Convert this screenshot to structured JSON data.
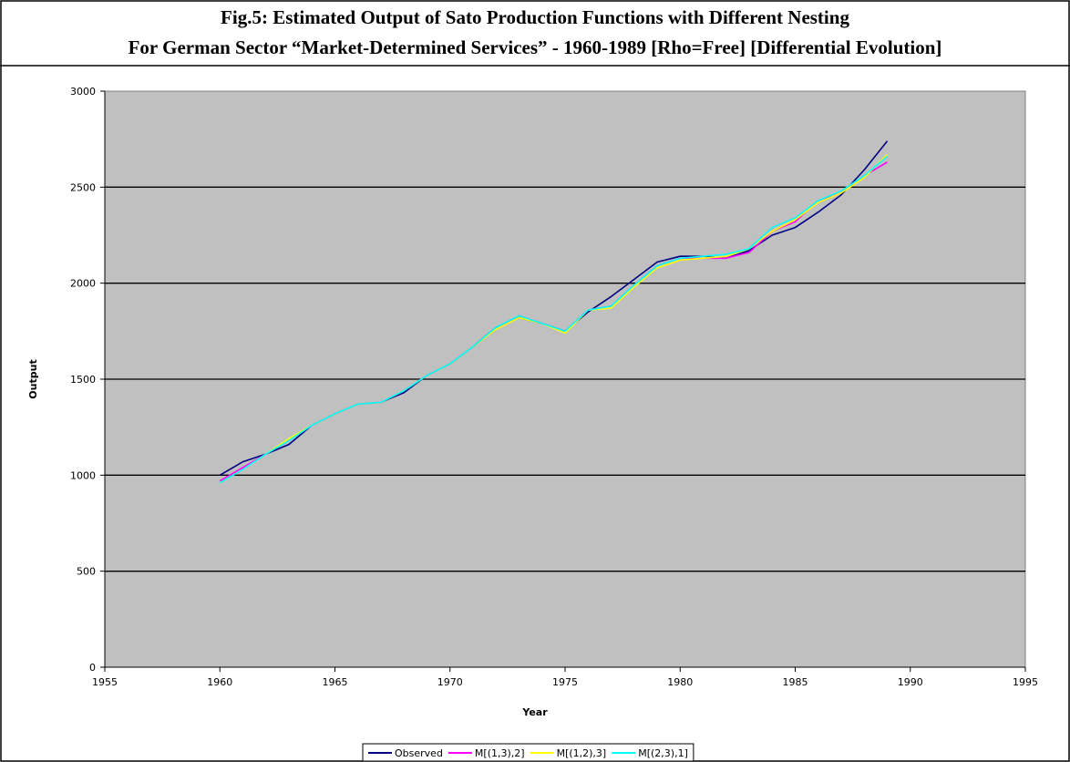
{
  "chart_data": {
    "type": "line",
    "title": "Fig.5: Estimated Output of  Sato Production Functions with Different Nesting",
    "subtitle": "For German Sector “Market-Determined Services” - 1960-1989 [Rho=Free] [Differential Evolution]",
    "x_label": "Year",
    "y_label": "Output",
    "x": [
      1960,
      1961,
      1962,
      1963,
      1964,
      1965,
      1966,
      1967,
      1968,
      1969,
      1970,
      1971,
      1972,
      1973,
      1974,
      1975,
      1976,
      1977,
      1978,
      1979,
      1980,
      1981,
      1982,
      1983,
      1984,
      1985,
      1986,
      1987,
      1988,
      1989
    ],
    "series": [
      {
        "name": "Observed",
        "color": "#000080",
        "values": [
          1000,
          1070,
          1110,
          1160,
          1260,
          1320,
          1370,
          1380,
          1430,
          1520,
          1580,
          1670,
          1770,
          1820,
          1790,
          1750,
          1850,
          1930,
          2020,
          2110,
          2140,
          2140,
          2130,
          2170,
          2250,
          2290,
          2370,
          2460,
          2590,
          2740
        ]
      },
      {
        "name": "M[(1,3),2]",
        "color": "#ff00ff",
        "values": [
          970,
          1040,
          1110,
          1180,
          1260,
          1320,
          1370,
          1380,
          1440,
          1520,
          1580,
          1670,
          1760,
          1830,
          1790,
          1750,
          1860,
          1880,
          1990,
          2090,
          2130,
          2130,
          2130,
          2160,
          2270,
          2320,
          2430,
          2470,
          2560,
          2630
        ]
      },
      {
        "name": "M[(1,2),3]",
        "color": "#ffff00",
        "values": [
          960,
          1030,
          1110,
          1190,
          1260,
          1320,
          1370,
          1380,
          1440,
          1520,
          1580,
          1670,
          1760,
          1820,
          1790,
          1740,
          1860,
          1870,
          1980,
          2080,
          2120,
          2130,
          2140,
          2180,
          2270,
          2330,
          2420,
          2470,
          2550,
          2670
        ]
      },
      {
        "name": "M[(2,3),1]",
        "color": "#00ffff",
        "values": [
          960,
          1030,
          1110,
          1180,
          1260,
          1320,
          1370,
          1380,
          1440,
          1520,
          1580,
          1670,
          1770,
          1830,
          1790,
          1750,
          1860,
          1880,
          1990,
          2090,
          2130,
          2140,
          2150,
          2180,
          2290,
          2340,
          2430,
          2480,
          2560,
          2660
        ]
      }
    ],
    "xlim": [
      1955,
      1995
    ],
    "xticks": [
      1955,
      1960,
      1965,
      1970,
      1975,
      1980,
      1985,
      1990,
      1995
    ],
    "ylim": [
      0,
      3000
    ],
    "yticks": [
      0,
      500,
      1000,
      1500,
      2000,
      2500,
      3000
    ],
    "grid": true,
    "plot_background": "#c0c0c0",
    "legend": "bottom"
  }
}
